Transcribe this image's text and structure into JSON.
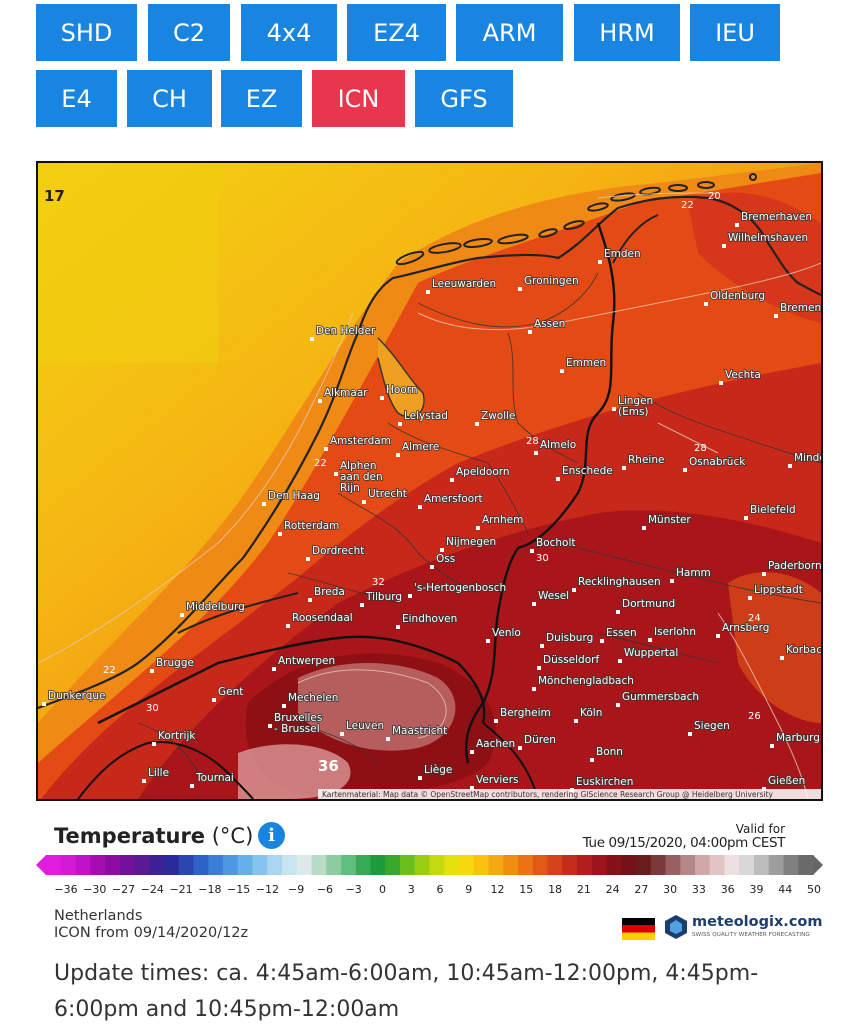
{
  "model_tabs": [
    {
      "label": "SHD",
      "active": false
    },
    {
      "label": "C2",
      "active": false
    },
    {
      "label": "4x4",
      "active": false
    },
    {
      "label": "EZ4",
      "active": false
    },
    {
      "label": "ARM",
      "active": false
    },
    {
      "label": "HRM",
      "active": false
    },
    {
      "label": "IEU",
      "active": false
    },
    {
      "label": "E4",
      "active": false
    },
    {
      "label": "CH",
      "active": false
    },
    {
      "label": "EZ",
      "active": false
    },
    {
      "label": "ICN",
      "active": true
    },
    {
      "label": "GFS",
      "active": false
    }
  ],
  "colors": {
    "tab_background": "#1a85e0",
    "tab_active": "#e8364f",
    "info_icon": "#1a85e0",
    "brand_text": "#1c3e6e"
  },
  "map": {
    "corner_value": "17",
    "attribution": "Kartenmaterial: Map data © OpenStreetMap contributors, rendering GIScience Research Group @ Heidelberg University",
    "cities": {
      "bremerhaven": "Bremerhaven",
      "wilhelmshaven": "Wilhelmshaven",
      "emden": "Emden",
      "leeuwarden": "Leeuwarden",
      "groningen": "Groningen",
      "oldenburg": "Oldenburg",
      "bremen": "Bremen",
      "assen": "Assen",
      "den_helder": "Den Helder",
      "emmen": "Emmen",
      "vechta": "Vechta",
      "alkmaar": "Alkmaar",
      "hoorn": "Hoorn",
      "lingen": "Lingen\n(Ems)",
      "lelystad": "Lelystad",
      "zwolle": "Zwolle",
      "amsterdam": "Amsterdam",
      "almere": "Almere",
      "almelo": "Almelo",
      "alphen": "Alphen\naan den\nRijn",
      "rheine": "Rheine",
      "osnabrueck": "Osnabrück",
      "minden": "Minden",
      "apeldoorn": "Apeldoorn",
      "enschede": "Enschede",
      "den_haag": "Den Haag",
      "utrecht": "Utrecht",
      "amersfoort": "Amersfoort",
      "bielefeld": "Bielefeld",
      "rotterdam": "Rotterdam",
      "arnhem": "Arnhem",
      "muenster": "Münster",
      "dordrecht": "Dordrecht",
      "nijmegen": "Nijmegen",
      "bocholt": "Bocholt",
      "oss": "Oss",
      "paderborn": "Paderborn",
      "hamm": "Hamm",
      "recklinghausen": "Recklinghausen",
      "s_hertogenbosch": "'s-Hertogenbosch",
      "breda": "Breda",
      "tilburg": "Tilburg",
      "wesel": "Wesel",
      "lippstadt": "Lippstadt",
      "middelburg": "Middelburg",
      "dortmund": "Dortmund",
      "roosendaal": "Roosendaal",
      "eindhoven": "Eindhoven",
      "venlo": "Venlo",
      "essen": "Essen",
      "iserlohn": "Iserlohn",
      "arnsberg": "Arnsberg",
      "duisburg": "Duisburg",
      "korbach": "Korbach",
      "brugge": "Brugge",
      "antwerpen": "Antwerpen",
      "duesseldorf": "Düsseldorf",
      "wuppertal": "Wuppertal",
      "moenchengladbach": "Mönchengladbach",
      "dunkerque": "Dunkerque",
      "gent": "Gent",
      "mechelen": "Mechelen",
      "gummersbach": "Gummersbach",
      "bruxelles": "Bruxelles\n- Brussel",
      "leuven": "Leuven",
      "maastricht": "Maastricht",
      "bergheim": "Bergheim",
      "koeln": "Köln",
      "siegen": "Siegen",
      "kortrijk": "Kortrijk",
      "aachen": "Aachen",
      "dueren": "Düren",
      "bonn": "Bonn",
      "marburg": "Marburg",
      "lille": "Lille",
      "tournai": "Tournai",
      "liege": "Liège",
      "verviers": "Verviers",
      "euskirchen": "Euskirchen",
      "giessen": "Gießen"
    },
    "isotherm_labels": {
      "l22_north": "22",
      "l20_north": "20",
      "l28_middle": "28",
      "l28_east": "28",
      "l22_coast": "22",
      "l36_south": "36",
      "l30_a": "30",
      "l30_b": "30",
      "l22_sw": "22",
      "l26_east": "26",
      "l32": "32",
      "l24": "24"
    }
  },
  "legend": {
    "title_bold": "Temperature",
    "title_unit": " (°C)",
    "info_icon": "info-icon",
    "valid_for_label": "Valid for",
    "valid_time": "Tue 09/15/2020, 04:00pm CEST",
    "scale_ticks": [
      "-36",
      "-30",
      "-27",
      "-24",
      "-21",
      "-18",
      "-15",
      "-12",
      "-9",
      "-6",
      "-3",
      "0",
      "3",
      "6",
      "9",
      "12",
      "15",
      "18",
      "21",
      "24",
      "27",
      "30",
      "33",
      "36",
      "39",
      "44",
      "50"
    ]
  },
  "footer": {
    "region": "Netherlands",
    "model_run": "ICON from 09/14/2020/12z",
    "flag": "germany-flag-icon",
    "brand_name": "meteologix.com",
    "brand_tagline": "SWISS QUALITY WEATHER FORECASTING",
    "update_times": "Update times: ca. 4:45am-6:00am, 10:45am-12:00pm, 4:45pm-6:00pm and 10:45pm-12:00am"
  }
}
